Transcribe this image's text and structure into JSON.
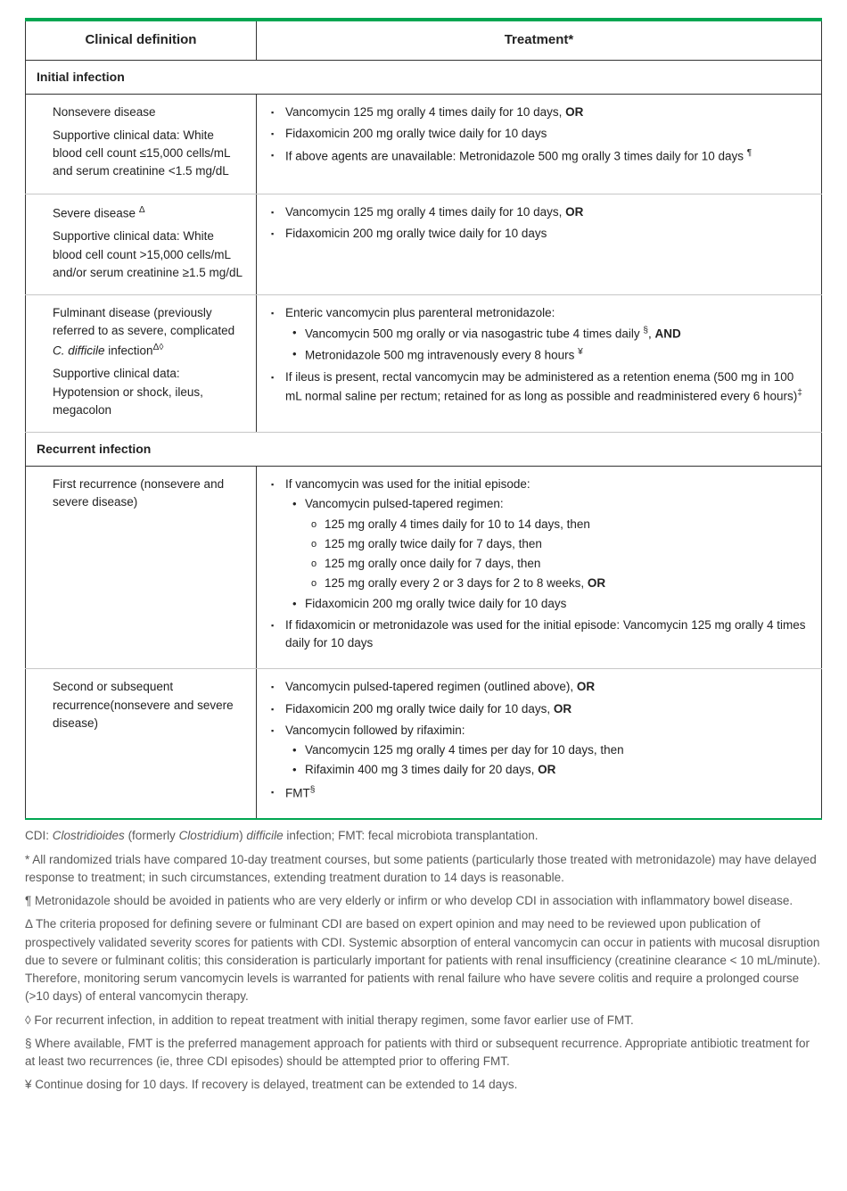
{
  "colors": {
    "accent": "#00a651",
    "border": "#333333",
    "row_divider": "#c7c7c7",
    "footnote_text": "#595959"
  },
  "header": {
    "col1": "Clinical definition",
    "col2": "Treatment*"
  },
  "sections": {
    "initial": "Initial infection",
    "recurrent": "Recurrent infection"
  },
  "rows": {
    "nonsevere": {
      "title": "Nonsevere disease",
      "sub": "Supportive clinical data: White blood cell count ≤15,000 cells/mL and serum creatinine <1.5 mg/dL",
      "t1a": "Vancomycin 125 mg orally 4 times daily for 10 days, ",
      "t1b": "OR",
      "t2": "Fidaxomicin 200 mg orally twice daily for 10 days",
      "t3a": "If above agents are unavailable: Metronidazole 500 mg orally 3 times daily for 10 days ",
      "t3sup": "¶"
    },
    "severe": {
      "title": "Severe disease ",
      "title_sup": "Δ",
      "sub": "Supportive clinical data: White blood cell count >15,000 cells/mL and/or serum creatinine ≥1.5 mg/dL",
      "t1a": "Vancomycin 125 mg orally 4 times daily for 10 days, ",
      "t1b": "OR",
      "t2": "Fidaxomicin 200 mg orally twice daily for 10 days"
    },
    "fulminant": {
      "title_a": "Fulminant disease (previously referred to as severe, complicated ",
      "title_i": "C. difficile",
      "title_b": " infection",
      "title_sup": "Δ◊",
      "sub": "Supportive clinical data: Hypotension or shock, ileus, megacolon",
      "t1": "Enteric vancomycin plus parenteral metronidazole:",
      "t1a_a": "Vancomycin 500 mg orally or via nasogastric tube 4 times daily ",
      "t1a_sup": "§",
      "t1a_b": ", ",
      "t1a_bold": "AND",
      "t1b_a": "Metronidazole 500 mg intravenously every 8 hours ",
      "t1b_sup": "¥",
      "t2a": "If ileus is present, rectal vancomycin may be administered as a retention enema (500 mg in 100 mL normal saline per rectum; retained for as long as possible and readministered every 6 hours)",
      "t2sup": "‡"
    },
    "first_rec": {
      "title": "First recurrence (nonsevere and severe disease)",
      "t1": "If vancomycin was used for the initial episode:",
      "t1a": "Vancomycin pulsed-tapered regimen:",
      "t1a1": "125 mg orally 4 times daily for 10 to 14 days, then",
      "t1a2": "125 mg orally twice daily for 7 days, then",
      "t1a3": "125 mg orally once daily for 7 days, then",
      "t1a4a": "125 mg orally every 2 or 3 days for 2 to 8 weeks, ",
      "t1a4b": "OR",
      "t1b": "Fidaxomicin 200 mg orally twice daily for 10 days",
      "t2": "If fidaxomicin or metronidazole was used for the initial episode: Vancomycin 125 mg orally 4 times daily for 10 days"
    },
    "second_rec": {
      "title": "Second or subsequent recurrence(nonsevere and severe disease)",
      "t1a": "Vancomycin pulsed-tapered regimen (outlined above), ",
      "t1b": "OR",
      "t2a": "Fidaxomicin 200 mg orally twice daily for 10 days, ",
      "t2b": "OR",
      "t3": "Vancomycin followed by rifaximin:",
      "t3a": "Vancomycin 125 mg orally 4 times per day for 10 days, then",
      "t3b_a": "Rifaximin 400 mg 3 times daily for 20 days, ",
      "t3b_b": "OR",
      "t4a": "FMT",
      "t4sup": "§"
    }
  },
  "footnotes": {
    "abbr_a": "CDI: ",
    "abbr_i1": "Clostridioides",
    "abbr_b": " (formerly ",
    "abbr_i2": "Clostridium",
    "abbr_c": ") ",
    "abbr_i3": "difficile",
    "abbr_d": " infection; FMT: fecal microbiota transplantation.",
    "star": "* All randomized trials have compared 10-day treatment courses, but some patients (particularly those treated with metronidazole) may have delayed response to treatment; in such circumstances, extending treatment duration to 14 days is reasonable.",
    "para": "¶ Metronidazole should be avoided in patients who are very elderly or infirm or who develop CDI in association with inflammatory bowel disease.",
    "delta": "Δ The criteria proposed for defining severe or fulminant CDI are based on expert opinion and may need to be reviewed upon publication of prospectively validated severity scores for patients with CDI. Systemic absorption of enteral vancomycin can occur in patients with mucosal disruption due to severe or fulminant colitis; this consideration is particularly important for patients with renal insufficiency (creatinine clearance < 10 mL/minute). Therefore, monitoring serum vancomycin levels is warranted for patients with renal failure who have severe colitis and require a prolonged course (>10 days) of enteral vancomycin therapy.",
    "diamond": "◊ For recurrent infection, in addition to repeat treatment with initial therapy regimen, some favor earlier use of FMT.",
    "section": "§ Where available, FMT is the preferred management approach for patients with third or subsequent recurrence. Appropriate antibiotic treatment for at least two recurrences (ie, three CDI episodes) should be attempted prior to offering FMT.",
    "yen": "¥ Continue dosing for 10 days. If recovery is delayed, treatment can be extended to 14 days."
  }
}
